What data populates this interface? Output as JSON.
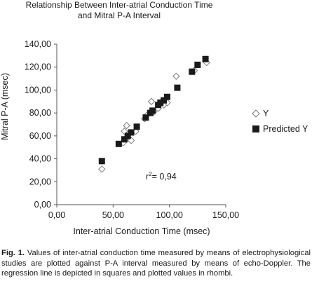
{
  "chart_data": {
    "type": "scatter",
    "title": [
      "Relationship Between Inter-atrial Conduction Time",
      "and Mitral P-A Interval"
    ],
    "xlabel": "Inter-atrial Conduction Time (msec)",
    "ylabel": "Mitral P-A (msec)",
    "xlim": [
      0,
      150
    ],
    "ylim": [
      0,
      140
    ],
    "x_ticks": [
      "0,00",
      "50,00",
      "100,00",
      "150,00"
    ],
    "y_ticks": [
      "0,00",
      "20,00",
      "40,00",
      "60,00",
      "80,00",
      "100,00",
      "120,00",
      "140,00"
    ],
    "grid": false,
    "legend_position": "right",
    "annotation": {
      "r_prefix": "r",
      "r_exp": "2",
      "r_value": "= 0,94"
    },
    "series": [
      {
        "name": "Y",
        "marker": "diamond",
        "color": "#7a7a7a",
        "points": [
          [
            40,
            31
          ],
          [
            59,
            54
          ],
          [
            60,
            64
          ],
          [
            62,
            69
          ],
          [
            64,
            58
          ],
          [
            66,
            56
          ],
          [
            70,
            64
          ],
          [
            78,
            75
          ],
          [
            80,
            78
          ],
          [
            84,
            90
          ],
          [
            86,
            81
          ],
          [
            90,
            84
          ],
          [
            92,
            89
          ],
          [
            95,
            87
          ],
          [
            98,
            89
          ],
          [
            106,
            112
          ],
          [
            122,
            117
          ],
          [
            133,
            124
          ]
        ]
      },
      {
        "name": "Predicted Y",
        "marker": "square",
        "color": "#1a1a1a",
        "points": [
          [
            40,
            38
          ],
          [
            55,
            53
          ],
          [
            60,
            57
          ],
          [
            63,
            60
          ],
          [
            66,
            63
          ],
          [
            71,
            68
          ],
          [
            79,
            76
          ],
          [
            83,
            80
          ],
          [
            85,
            82
          ],
          [
            90,
            87
          ],
          [
            92,
            89
          ],
          [
            95,
            91
          ],
          [
            98,
            94
          ],
          [
            107,
            102
          ],
          [
            120,
            116
          ],
          [
            125,
            122
          ],
          [
            132,
            127
          ]
        ]
      }
    ]
  },
  "caption": {
    "label": "Fig. 1.",
    "text": " Values of inter-atrial conduction time measured by means of electrophysiological studies are plotted against P-A interval measured by means of echo-Doppler. The regression line is depicted in squares and plotted values in rhombi."
  }
}
